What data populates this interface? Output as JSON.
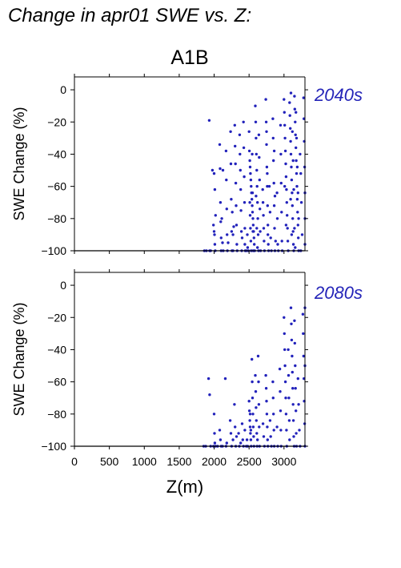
{
  "title": "Change in apr01 SWE vs. Z:",
  "colors": {
    "points": "#2222bb",
    "panel_label": "#2424b8",
    "axes": "#000000"
  },
  "chart_data": [
    {
      "type": "scatter",
      "title": "A1B",
      "panel_label": "2040s",
      "xlabel": "",
      "ylabel": "SWE Change (%)",
      "xlim": [
        0,
        3300
      ],
      "ylim": [
        -100,
        8
      ],
      "xticks": [],
      "yticks": [
        0,
        -20,
        -40,
        -60,
        -80,
        -100
      ],
      "ytick_labels": [
        "0",
        "−20",
        "−40",
        "−60",
        "−80",
        "−100"
      ],
      "grid": false,
      "points": [
        [
          1930,
          -19
        ],
        [
          1935,
          -100
        ],
        [
          1860,
          -100
        ],
        [
          1890,
          -100
        ],
        [
          1950,
          -100
        ],
        [
          1975,
          -50
        ],
        [
          1990,
          -84
        ],
        [
          2000,
          -88
        ],
        [
          2005,
          -90
        ],
        [
          2010,
          -96
        ],
        [
          2015,
          -100
        ],
        [
          2000,
          -52
        ],
        [
          2010,
          -62
        ],
        [
          2020,
          -78
        ],
        [
          2080,
          -34
        ],
        [
          2085,
          -49
        ],
        [
          2090,
          -70
        ],
        [
          2095,
          -82
        ],
        [
          2100,
          -92
        ],
        [
          2100,
          -100
        ],
        [
          2110,
          -80
        ],
        [
          2120,
          -95
        ],
        [
          2130,
          -100
        ],
        [
          2125,
          -50
        ],
        [
          2170,
          -38
        ],
        [
          2175,
          -56
        ],
        [
          2180,
          -74
        ],
        [
          2185,
          -90
        ],
        [
          2190,
          -100
        ],
        [
          2200,
          -95
        ],
        [
          2235,
          -26
        ],
        [
          2240,
          -46
        ],
        [
          2245,
          -68
        ],
        [
          2250,
          -88
        ],
        [
          2255,
          -100
        ],
        [
          2260,
          -76
        ],
        [
          2270,
          -90
        ],
        [
          2270,
          -100
        ],
        [
          2280,
          -85
        ],
        [
          2295,
          -22
        ],
        [
          2300,
          -35
        ],
        [
          2305,
          -46
        ],
        [
          2310,
          -58
        ],
        [
          2315,
          -72
        ],
        [
          2320,
          -84
        ],
        [
          2325,
          -96
        ],
        [
          2330,
          -100
        ],
        [
          2365,
          -28
        ],
        [
          2370,
          -40
        ],
        [
          2375,
          -50
        ],
        [
          2380,
          -62
        ],
        [
          2385,
          -75
        ],
        [
          2390,
          -88
        ],
        [
          2395,
          -100
        ],
        [
          2400,
          -92
        ],
        [
          2420,
          -20
        ],
        [
          2425,
          -36
        ],
        [
          2430,
          -54
        ],
        [
          2435,
          -70
        ],
        [
          2440,
          -86
        ],
        [
          2445,
          -100
        ],
        [
          2440,
          -96
        ],
        [
          2475,
          -90
        ],
        [
          2480,
          -98
        ],
        [
          2490,
          -100
        ],
        [
          2460,
          -100
        ],
        [
          2500,
          -26
        ],
        [
          2505,
          -38
        ],
        [
          2510,
          -44
        ],
        [
          2515,
          -48
        ],
        [
          2520,
          -52
        ],
        [
          2525,
          -56
        ],
        [
          2530,
          -60
        ],
        [
          2535,
          -64
        ],
        [
          2540,
          -68
        ],
        [
          2545,
          -72
        ],
        [
          2550,
          -76
        ],
        [
          2555,
          -80
        ],
        [
          2560,
          -84
        ],
        [
          2565,
          -88
        ],
        [
          2570,
          -92
        ],
        [
          2575,
          -96
        ],
        [
          2580,
          -100
        ],
        [
          2510,
          -70
        ],
        [
          2515,
          -78
        ],
        [
          2520,
          -86
        ],
        [
          2525,
          -94
        ],
        [
          2530,
          -100
        ],
        [
          2545,
          -40
        ],
        [
          2550,
          -64
        ],
        [
          2555,
          -88
        ],
        [
          2560,
          -100
        ],
        [
          2590,
          -10
        ],
        [
          2595,
          -20
        ],
        [
          2600,
          -30
        ],
        [
          2605,
          -40
        ],
        [
          2610,
          -50
        ],
        [
          2615,
          -60
        ],
        [
          2620,
          -70
        ],
        [
          2625,
          -80
        ],
        [
          2630,
          -90
        ],
        [
          2635,
          -100
        ],
        [
          2600,
          -66
        ],
        [
          2610,
          -86
        ],
        [
          2620,
          -98
        ],
        [
          2640,
          -28
        ],
        [
          2645,
          -42
        ],
        [
          2650,
          -56
        ],
        [
          2655,
          -74
        ],
        [
          2660,
          -88
        ],
        [
          2665,
          -100
        ],
        [
          2695,
          -62
        ],
        [
          2700,
          -70
        ],
        [
          2705,
          -78
        ],
        [
          2710,
          -86
        ],
        [
          2715,
          -94
        ],
        [
          2720,
          -100
        ],
        [
          2740,
          -6
        ],
        [
          2745,
          -20
        ],
        [
          2750,
          -34
        ],
        [
          2755,
          -48
        ],
        [
          2760,
          -60
        ],
        [
          2765,
          -72
        ],
        [
          2770,
          -84
        ],
        [
          2775,
          -96
        ],
        [
          2780,
          -100
        ],
        [
          2750,
          -26
        ],
        [
          2760,
          -52
        ],
        [
          2770,
          -90
        ],
        [
          2790,
          -60
        ],
        [
          2800,
          -76
        ],
        [
          2810,
          -92
        ],
        [
          2820,
          -100
        ],
        [
          2840,
          -18
        ],
        [
          2845,
          -30
        ],
        [
          2850,
          -44
        ],
        [
          2855,
          -58
        ],
        [
          2860,
          -72
        ],
        [
          2865,
          -86
        ],
        [
          2870,
          -100
        ],
        [
          2860,
          -38
        ],
        [
          2870,
          -66
        ],
        [
          2880,
          -94
        ],
        [
          2900,
          -64
        ],
        [
          2905,
          -80
        ],
        [
          2910,
          -96
        ],
        [
          2920,
          -100
        ],
        [
          2950,
          -22
        ],
        [
          2955,
          -40
        ],
        [
          2960,
          -58
        ],
        [
          2965,
          -76
        ],
        [
          2970,
          -94
        ],
        [
          2975,
          -100
        ],
        [
          3000,
          -6
        ],
        [
          3005,
          -14
        ],
        [
          3010,
          -22
        ],
        [
          3015,
          -30
        ],
        [
          3020,
          -38
        ],
        [
          3025,
          -46
        ],
        [
          3030,
          -54
        ],
        [
          3035,
          -62
        ],
        [
          3040,
          -70
        ],
        [
          3045,
          -78
        ],
        [
          3050,
          -86
        ],
        [
          3055,
          -94
        ],
        [
          3060,
          -100
        ],
        [
          3010,
          -60
        ],
        [
          3030,
          -84
        ],
        [
          3080,
          -8
        ],
        [
          3085,
          -16
        ],
        [
          3090,
          -24
        ],
        [
          3095,
          -32
        ],
        [
          3100,
          -40
        ],
        [
          3105,
          -48
        ],
        [
          3110,
          -56
        ],
        [
          3115,
          -64
        ],
        [
          3120,
          -72
        ],
        [
          3125,
          -80
        ],
        [
          3130,
          -88
        ],
        [
          3135,
          -96
        ],
        [
          3140,
          -100
        ],
        [
          3100,
          -2
        ],
        [
          3095,
          -68
        ],
        [
          3110,
          -90
        ],
        [
          3150,
          -4
        ],
        [
          3155,
          -12
        ],
        [
          3160,
          -20
        ],
        [
          3165,
          -28
        ],
        [
          3170,
          -36
        ],
        [
          3175,
          -44
        ],
        [
          3180,
          -52
        ],
        [
          3185,
          -60
        ],
        [
          3190,
          -68
        ],
        [
          3195,
          -76
        ],
        [
          3200,
          -84
        ],
        [
          3205,
          -92
        ],
        [
          3210,
          -100
        ],
        [
          3120,
          -26
        ],
        [
          3130,
          -44
        ],
        [
          3140,
          -62
        ],
        [
          3150,
          -86
        ],
        [
          3160,
          -98
        ],
        [
          3170,
          -14
        ],
        [
          3180,
          -30
        ],
        [
          3190,
          -48
        ],
        [
          3200,
          -64
        ],
        [
          3210,
          -80
        ],
        [
          3230,
          -40
        ],
        [
          3240,
          -52
        ],
        [
          3250,
          -70
        ],
        [
          3260,
          -90
        ],
        [
          3240,
          -100
        ],
        [
          3280,
          -5
        ],
        [
          3285,
          -18
        ],
        [
          3290,
          -32
        ],
        [
          3295,
          -48
        ],
        [
          3300,
          -64
        ],
        [
          3300,
          -80
        ],
        [
          3300,
          -96
        ]
      ]
    },
    {
      "type": "scatter",
      "title": "",
      "panel_label": "2080s",
      "xlabel": "Z(m)",
      "ylabel": "SWE Change (%)",
      "xlim": [
        0,
        3300
      ],
      "ylim": [
        -100,
        8
      ],
      "xticks": [
        0,
        500,
        1000,
        1500,
        2000,
        2500,
        3000
      ],
      "yticks": [
        0,
        -20,
        -40,
        -60,
        -80,
        -100
      ],
      "ytick_labels": [
        "0",
        "−20",
        "−40",
        "−60",
        "−80",
        "−100"
      ],
      "grid": false,
      "points": [
        [
          1850,
          -100
        ],
        [
          1880,
          -100
        ],
        [
          1920,
          -58
        ],
        [
          1935,
          -68
        ],
        [
          1950,
          -100
        ],
        [
          1990,
          -100
        ],
        [
          2000,
          -80
        ],
        [
          2005,
          -92
        ],
        [
          2010,
          -98
        ],
        [
          2020,
          -100
        ],
        [
          2050,
          -100
        ],
        [
          2080,
          -90
        ],
        [
          2090,
          -96
        ],
        [
          2100,
          -100
        ],
        [
          2120,
          -100
        ],
        [
          2160,
          -58
        ],
        [
          2170,
          -100
        ],
        [
          2180,
          -98
        ],
        [
          2230,
          -84
        ],
        [
          2240,
          -92
        ],
        [
          2250,
          -100
        ],
        [
          2270,
          -96
        ],
        [
          2290,
          -74
        ],
        [
          2300,
          -88
        ],
        [
          2310,
          -100
        ],
        [
          2320,
          -94
        ],
        [
          2350,
          -92
        ],
        [
          2360,
          -100
        ],
        [
          2380,
          -98
        ],
        [
          2400,
          -86
        ],
        [
          2410,
          -96
        ],
        [
          2420,
          -100
        ],
        [
          2440,
          -90
        ],
        [
          2460,
          -100
        ],
        [
          2470,
          -96
        ],
        [
          2480,
          -100
        ],
        [
          2500,
          -72
        ],
        [
          2505,
          -78
        ],
        [
          2510,
          -84
        ],
        [
          2515,
          -88
        ],
        [
          2520,
          -92
        ],
        [
          2525,
          -96
        ],
        [
          2530,
          -100
        ],
        [
          2515,
          -80
        ],
        [
          2525,
          -90
        ],
        [
          2540,
          -46
        ],
        [
          2545,
          -60
        ],
        [
          2550,
          -70
        ],
        [
          2555,
          -80
        ],
        [
          2560,
          -88
        ],
        [
          2565,
          -94
        ],
        [
          2570,
          -100
        ],
        [
          2590,
          -56
        ],
        [
          2595,
          -66
        ],
        [
          2600,
          -76
        ],
        [
          2605,
          -84
        ],
        [
          2610,
          -92
        ],
        [
          2615,
          -100
        ],
        [
          2620,
          -96
        ],
        [
          2630,
          -44
        ],
        [
          2635,
          -60
        ],
        [
          2640,
          -74
        ],
        [
          2645,
          -88
        ],
        [
          2650,
          -100
        ],
        [
          2700,
          -86
        ],
        [
          2710,
          -94
        ],
        [
          2720,
          -100
        ],
        [
          2740,
          -56
        ],
        [
          2745,
          -64
        ],
        [
          2750,
          -72
        ],
        [
          2755,
          -80
        ],
        [
          2760,
          -88
        ],
        [
          2765,
          -96
        ],
        [
          2770,
          -100
        ],
        [
          2800,
          -84
        ],
        [
          2810,
          -94
        ],
        [
          2820,
          -100
        ],
        [
          2840,
          -60
        ],
        [
          2845,
          -70
        ],
        [
          2850,
          -80
        ],
        [
          2855,
          -90
        ],
        [
          2860,
          -100
        ],
        [
          2900,
          -88
        ],
        [
          2910,
          -100
        ],
        [
          2940,
          -52
        ],
        [
          2945,
          -66
        ],
        [
          2950,
          -78
        ],
        [
          2955,
          -90
        ],
        [
          2960,
          -100
        ],
        [
          3000,
          -20
        ],
        [
          3005,
          -30
        ],
        [
          3010,
          -40
        ],
        [
          3015,
          -50
        ],
        [
          3020,
          -60
        ],
        [
          3025,
          -70
        ],
        [
          3030,
          -80
        ],
        [
          3035,
          -90
        ],
        [
          3040,
          -100
        ],
        [
          3060,
          -40
        ],
        [
          3065,
          -56
        ],
        [
          3070,
          -70
        ],
        [
          3075,
          -84
        ],
        [
          3080,
          -96
        ],
        [
          3100,
          -14
        ],
        [
          3105,
          -24
        ],
        [
          3110,
          -34
        ],
        [
          3115,
          -44
        ],
        [
          3120,
          -54
        ],
        [
          3125,
          -64
        ],
        [
          3130,
          -74
        ],
        [
          3135,
          -84
        ],
        [
          3140,
          -94
        ],
        [
          3145,
          -100
        ],
        [
          3150,
          -22
        ],
        [
          3155,
          -36
        ],
        [
          3160,
          -50
        ],
        [
          3165,
          -64
        ],
        [
          3170,
          -78
        ],
        [
          3175,
          -92
        ],
        [
          3180,
          -100
        ],
        [
          3200,
          -58
        ],
        [
          3210,
          -74
        ],
        [
          3220,
          -90
        ],
        [
          3230,
          -100
        ],
        [
          3270,
          -18
        ],
        [
          3275,
          -30
        ],
        [
          3280,
          -44
        ],
        [
          3285,
          -58
        ],
        [
          3290,
          -72
        ],
        [
          3295,
          -86
        ],
        [
          3300,
          -100
        ],
        [
          3300,
          -14
        ],
        [
          3300,
          -50
        ]
      ]
    }
  ]
}
